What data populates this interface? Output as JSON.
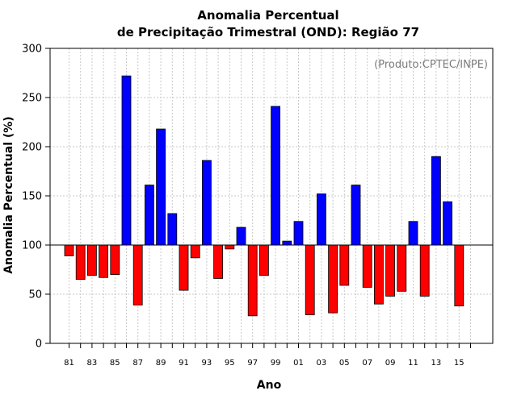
{
  "chart_data": {
    "type": "bar",
    "title": "Anomalia Percentual",
    "subtitle": "de Precipitação Trimestral (OND): Região 77",
    "xlabel": "Ano",
    "ylabel": "Anomalia Percentual (%)",
    "annotation": "(Produto:CPTEC/INPE)",
    "ylim": [
      0,
      300
    ],
    "yticks": [
      0,
      50,
      100,
      150,
      200,
      250,
      300
    ],
    "baseline": 100,
    "grid": true,
    "colors": {
      "above": "#0000ff",
      "below": "#ff0000",
      "edge": "#000000"
    },
    "years": [
      "81",
      "82",
      "83",
      "84",
      "85",
      "86",
      "87",
      "88",
      "89",
      "90",
      "91",
      "92",
      "93",
      "94",
      "95",
      "96",
      "97",
      "98",
      "99",
      "00",
      "01",
      "02",
      "03",
      "04",
      "05",
      "06",
      "07",
      "08",
      "09",
      "10",
      "11",
      "12",
      "13",
      "14",
      "15"
    ],
    "tick_labels": [
      "81",
      "83",
      "85",
      "87",
      "89",
      "91",
      "93",
      "95",
      "97",
      "99",
      "01",
      "03",
      "05",
      "07",
      "09",
      "11",
      "13",
      "15"
    ],
    "values": [
      89,
      65,
      69,
      67,
      70,
      272,
      39,
      161,
      218,
      132,
      54,
      87,
      186,
      66,
      96,
      118,
      28,
      69,
      241,
      104,
      124,
      29,
      152,
      31,
      59,
      161,
      57,
      40,
      48,
      53,
      124,
      48,
      190,
      144,
      38
    ]
  }
}
